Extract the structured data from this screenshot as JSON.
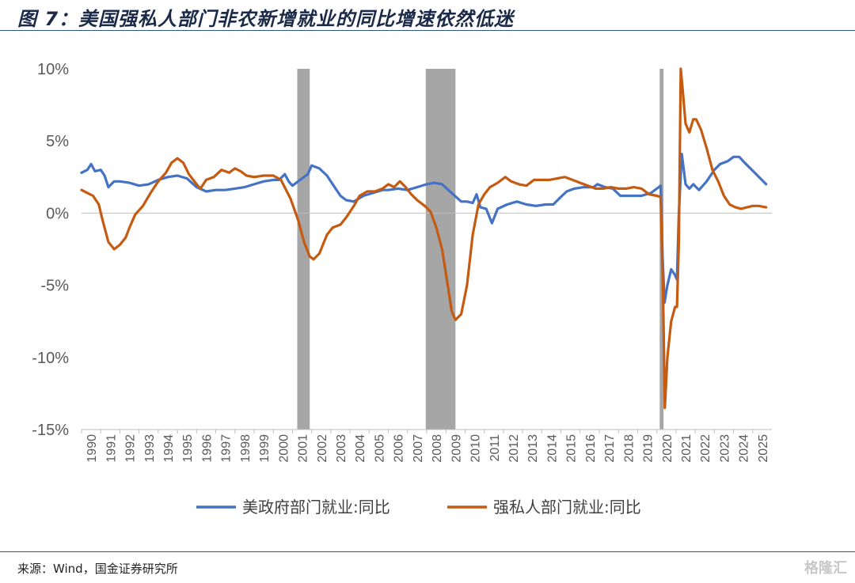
{
  "figure": {
    "title": "图 7：美国强私人部门非农新增就业的同比增速依然低迷",
    "source": "来源：Wind，国金证券研究所",
    "watermark": "格隆汇"
  },
  "chart_data": {
    "type": "line",
    "title": "图 7：美国强私人部门非农新增就业的同比增速依然低迷",
    "xlabel": "",
    "ylabel": "",
    "xlim": [
      1990,
      2026
    ],
    "ylim": [
      -15,
      10
    ],
    "yticks": [
      10,
      5,
      0,
      -5,
      -10,
      -15
    ],
    "ytick_labels": [
      "10%",
      "5%",
      "0%",
      "-5%",
      "-10%",
      "-15%"
    ],
    "xtick_labels": [
      "1990",
      "1991",
      "1992",
      "1993",
      "1994",
      "1995",
      "1996",
      "1997",
      "1998",
      "1999",
      "2000",
      "2001",
      "2002",
      "2003",
      "2004",
      "2005",
      "2006",
      "2007",
      "2008",
      "2009",
      "2010",
      "2011",
      "2012",
      "2013",
      "2014",
      "2015",
      "2016",
      "2017",
      "2018",
      "2019",
      "2020",
      "2021",
      "2022",
      "2023",
      "2024",
      "2025"
    ],
    "grid": false,
    "legend_position": "bottom",
    "recessions": [
      [
        2001.25,
        2001.9
      ],
      [
        2007.95,
        2009.5
      ],
      [
        2020.15,
        2020.35
      ]
    ],
    "series": [
      {
        "name": "美政府部门就业:同比",
        "color": "#4472c4",
        "points": [
          [
            1990.0,
            2.8
          ],
          [
            1990.3,
            3.0
          ],
          [
            1990.5,
            3.4
          ],
          [
            1990.7,
            2.9
          ],
          [
            1991.0,
            3.0
          ],
          [
            1991.2,
            2.6
          ],
          [
            1991.4,
            1.8
          ],
          [
            1991.7,
            2.2
          ],
          [
            1992.0,
            2.2
          ],
          [
            1992.5,
            2.1
          ],
          [
            1993.0,
            1.9
          ],
          [
            1993.5,
            2.0
          ],
          [
            1994.0,
            2.3
          ],
          [
            1994.5,
            2.5
          ],
          [
            1995.0,
            2.6
          ],
          [
            1995.5,
            2.4
          ],
          [
            1996.0,
            1.8
          ],
          [
            1996.5,
            1.5
          ],
          [
            1997.0,
            1.6
          ],
          [
            1997.5,
            1.6
          ],
          [
            1998.0,
            1.7
          ],
          [
            1998.5,
            1.8
          ],
          [
            1999.0,
            2.0
          ],
          [
            1999.5,
            2.2
          ],
          [
            2000.0,
            2.3
          ],
          [
            2000.3,
            2.3
          ],
          [
            2000.6,
            2.7
          ],
          [
            2000.8,
            2.2
          ],
          [
            2001.0,
            1.9
          ],
          [
            2001.4,
            2.3
          ],
          [
            2001.8,
            2.7
          ],
          [
            2002.0,
            3.3
          ],
          [
            2002.4,
            3.1
          ],
          [
            2002.8,
            2.6
          ],
          [
            2003.2,
            1.8
          ],
          [
            2003.5,
            1.2
          ],
          [
            2003.8,
            0.9
          ],
          [
            2004.2,
            0.8
          ],
          [
            2004.7,
            1.2
          ],
          [
            2005.2,
            1.4
          ],
          [
            2005.7,
            1.6
          ],
          [
            2006.0,
            1.6
          ],
          [
            2006.5,
            1.7
          ],
          [
            2007.0,
            1.6
          ],
          [
            2007.5,
            1.8
          ],
          [
            2008.0,
            2.0
          ],
          [
            2008.4,
            2.1
          ],
          [
            2008.8,
            2.0
          ],
          [
            2009.3,
            1.4
          ],
          [
            2009.8,
            0.8
          ],
          [
            2010.1,
            0.8
          ],
          [
            2010.4,
            0.7
          ],
          [
            2010.6,
            1.3
          ],
          [
            2010.8,
            0.4
          ],
          [
            2011.1,
            0.3
          ],
          [
            2011.4,
            -0.7
          ],
          [
            2011.7,
            0.3
          ],
          [
            2012.2,
            0.6
          ],
          [
            2012.7,
            0.8
          ],
          [
            2013.2,
            0.6
          ],
          [
            2013.7,
            0.5
          ],
          [
            2014.2,
            0.6
          ],
          [
            2014.6,
            0.6
          ],
          [
            2014.9,
            1.0
          ],
          [
            2015.3,
            1.5
          ],
          [
            2015.7,
            1.7
          ],
          [
            2016.2,
            1.8
          ],
          [
            2016.7,
            1.8
          ],
          [
            2016.9,
            2.0
          ],
          [
            2017.3,
            1.8
          ],
          [
            2017.7,
            1.7
          ],
          [
            2018.1,
            1.2
          ],
          [
            2018.6,
            1.2
          ],
          [
            2019.2,
            1.2
          ],
          [
            2019.7,
            1.4
          ],
          [
            2020.0,
            1.7
          ],
          [
            2020.1,
            1.8
          ],
          [
            2020.2,
            1.9
          ],
          [
            2020.3,
            -3.0
          ],
          [
            2020.4,
            -6.2
          ],
          [
            2020.55,
            -5.0
          ],
          [
            2020.75,
            -3.9
          ],
          [
            2020.95,
            -4.3
          ],
          [
            2021.05,
            -4.6
          ],
          [
            2021.15,
            0.0
          ],
          [
            2021.3,
            4.1
          ],
          [
            2021.5,
            2.0
          ],
          [
            2021.7,
            1.7
          ],
          [
            2021.9,
            2.0
          ],
          [
            2022.2,
            1.6
          ],
          [
            2022.6,
            2.2
          ],
          [
            2023.0,
            3.0
          ],
          [
            2023.3,
            3.4
          ],
          [
            2023.7,
            3.6
          ],
          [
            2024.0,
            3.9
          ],
          [
            2024.3,
            3.9
          ],
          [
            2024.5,
            3.6
          ],
          [
            2024.8,
            3.2
          ],
          [
            2025.1,
            2.8
          ],
          [
            2025.4,
            2.4
          ],
          [
            2025.7,
            2.0
          ]
        ]
      },
      {
        "name": "强私人部门就业:同比",
        "color": "#c55a11",
        "points": [
          [
            1990.0,
            1.6
          ],
          [
            1990.3,
            1.4
          ],
          [
            1990.6,
            1.2
          ],
          [
            1990.9,
            0.6
          ],
          [
            1991.1,
            -0.5
          ],
          [
            1991.4,
            -2.0
          ],
          [
            1991.7,
            -2.5
          ],
          [
            1992.0,
            -2.2
          ],
          [
            1992.3,
            -1.7
          ],
          [
            1992.5,
            -1.0
          ],
          [
            1992.8,
            -0.1
          ],
          [
            1993.2,
            0.5
          ],
          [
            1993.6,
            1.4
          ],
          [
            1994.0,
            2.2
          ],
          [
            1994.4,
            2.8
          ],
          [
            1994.7,
            3.5
          ],
          [
            1995.0,
            3.8
          ],
          [
            1995.3,
            3.5
          ],
          [
            1995.6,
            2.7
          ],
          [
            1996.0,
            2.0
          ],
          [
            1996.2,
            1.7
          ],
          [
            1996.5,
            2.3
          ],
          [
            1996.9,
            2.5
          ],
          [
            1997.3,
            3.0
          ],
          [
            1997.7,
            2.8
          ],
          [
            1998.0,
            3.1
          ],
          [
            1998.3,
            2.9
          ],
          [
            1998.6,
            2.6
          ],
          [
            1999.0,
            2.5
          ],
          [
            1999.5,
            2.6
          ],
          [
            2000.0,
            2.6
          ],
          [
            2000.4,
            2.3
          ],
          [
            2000.9,
            1.0
          ],
          [
            2001.3,
            -0.5
          ],
          [
            2001.6,
            -2.0
          ],
          [
            2001.9,
            -3.0
          ],
          [
            2002.1,
            -3.2
          ],
          [
            2002.4,
            -2.8
          ],
          [
            2002.8,
            -1.5
          ],
          [
            2003.1,
            -1.0
          ],
          [
            2003.5,
            -0.8
          ],
          [
            2003.8,
            -0.3
          ],
          [
            2004.2,
            0.5
          ],
          [
            2004.5,
            1.2
          ],
          [
            2004.9,
            1.5
          ],
          [
            2005.3,
            1.5
          ],
          [
            2005.7,
            1.7
          ],
          [
            2006.0,
            2.0
          ],
          [
            2006.3,
            1.8
          ],
          [
            2006.6,
            2.2
          ],
          [
            2006.9,
            1.8
          ],
          [
            2007.2,
            1.3
          ],
          [
            2007.5,
            0.9
          ],
          [
            2007.9,
            0.5
          ],
          [
            2008.2,
            0.1
          ],
          [
            2008.5,
            -1.0
          ],
          [
            2008.8,
            -2.5
          ],
          [
            2009.1,
            -5.0
          ],
          [
            2009.3,
            -6.8
          ],
          [
            2009.5,
            -7.4
          ],
          [
            2009.8,
            -7.0
          ],
          [
            2010.1,
            -5.0
          ],
          [
            2010.4,
            -1.5
          ],
          [
            2010.7,
            0.6
          ],
          [
            2011.0,
            1.3
          ],
          [
            2011.3,
            1.8
          ],
          [
            2011.7,
            2.1
          ],
          [
            2012.1,
            2.5
          ],
          [
            2012.4,
            2.2
          ],
          [
            2012.8,
            2.0
          ],
          [
            2013.2,
            1.9
          ],
          [
            2013.6,
            2.3
          ],
          [
            2014.0,
            2.3
          ],
          [
            2014.4,
            2.3
          ],
          [
            2014.8,
            2.4
          ],
          [
            2015.2,
            2.5
          ],
          [
            2015.6,
            2.3
          ],
          [
            2016.0,
            2.1
          ],
          [
            2016.4,
            1.9
          ],
          [
            2016.8,
            1.7
          ],
          [
            2017.2,
            1.7
          ],
          [
            2017.6,
            1.8
          ],
          [
            2018.0,
            1.7
          ],
          [
            2018.4,
            1.7
          ],
          [
            2018.8,
            1.8
          ],
          [
            2019.2,
            1.7
          ],
          [
            2019.6,
            1.3
          ],
          [
            2020.0,
            1.2
          ],
          [
            2020.2,
            1.1
          ],
          [
            2020.32,
            -5.0
          ],
          [
            2020.42,
            -13.5
          ],
          [
            2020.55,
            -10.0
          ],
          [
            2020.75,
            -7.5
          ],
          [
            2020.95,
            -6.5
          ],
          [
            2021.05,
            -6.5
          ],
          [
            2021.15,
            -2.0
          ],
          [
            2021.25,
            10.0
          ],
          [
            2021.35,
            8.5
          ],
          [
            2021.5,
            6.2
          ],
          [
            2021.7,
            5.6
          ],
          [
            2021.9,
            6.5
          ],
          [
            2022.05,
            6.5
          ],
          [
            2022.3,
            5.8
          ],
          [
            2022.6,
            4.5
          ],
          [
            2022.9,
            3.0
          ],
          [
            2023.2,
            2.2
          ],
          [
            2023.5,
            1.2
          ],
          [
            2023.8,
            0.6
          ],
          [
            2024.1,
            0.4
          ],
          [
            2024.4,
            0.3
          ],
          [
            2024.7,
            0.4
          ],
          [
            2025.0,
            0.5
          ],
          [
            2025.3,
            0.5
          ],
          [
            2025.7,
            0.4
          ]
        ]
      }
    ]
  }
}
